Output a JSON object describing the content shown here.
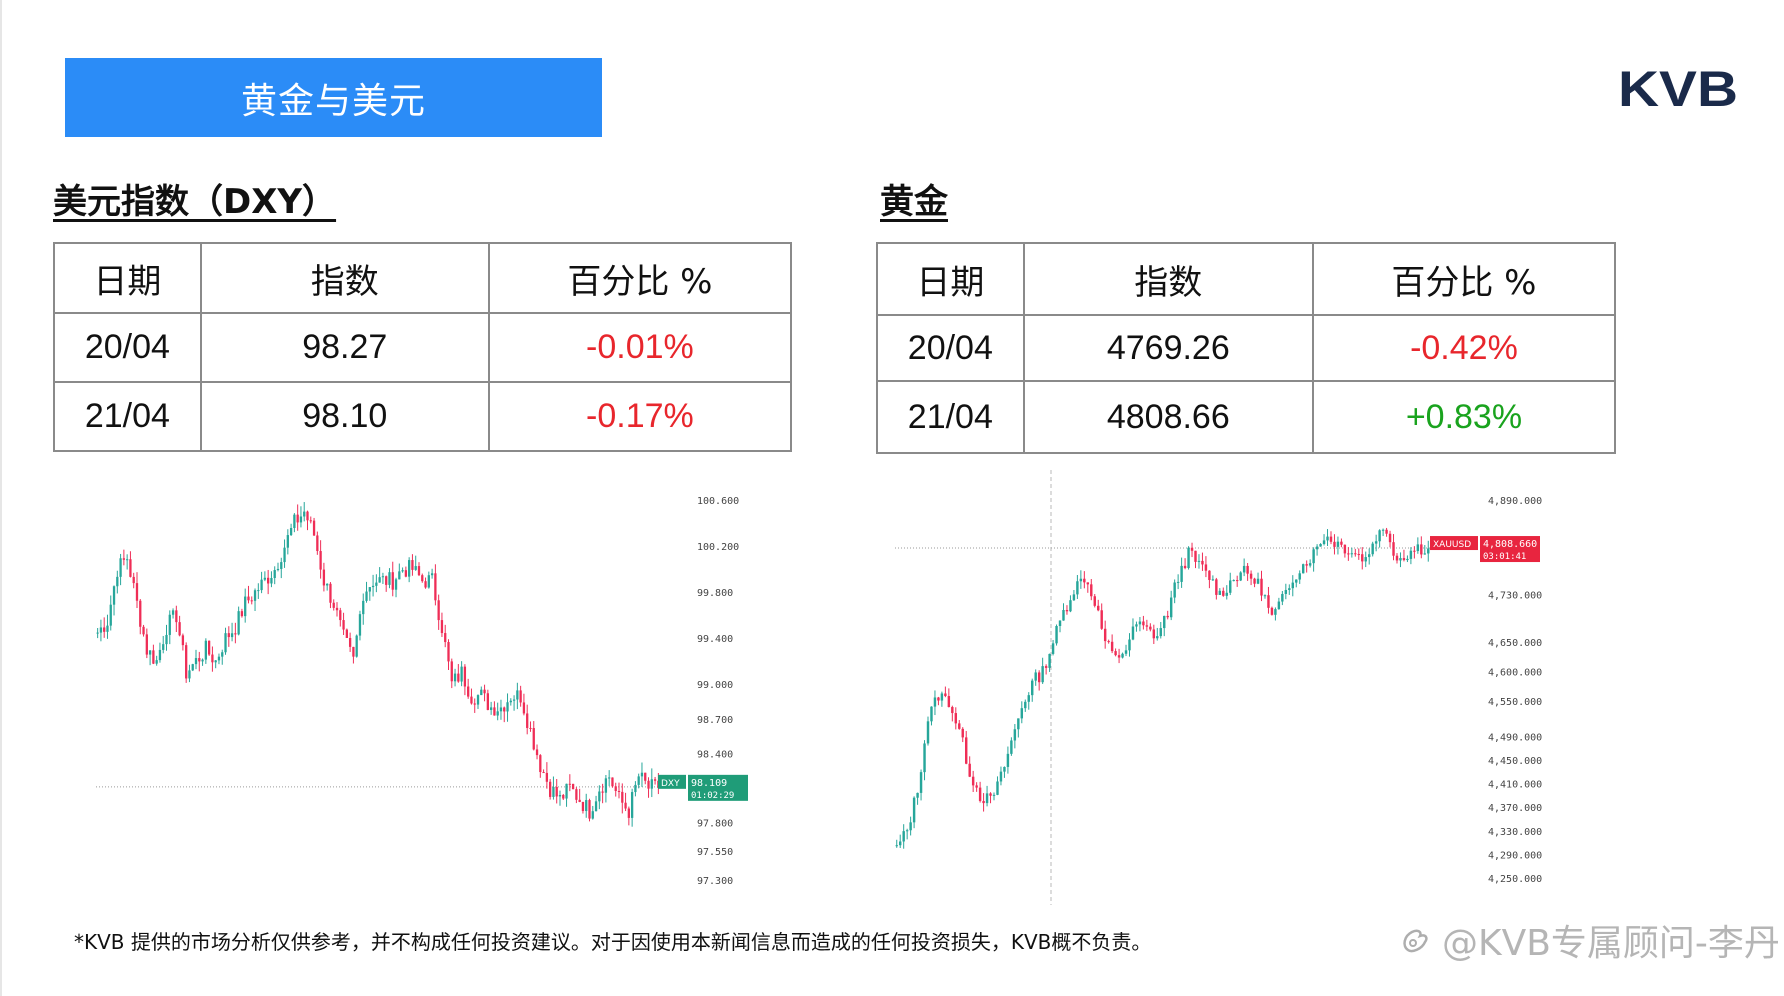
{
  "header": {
    "title": "黄金与美元",
    "logo_text": "KVB"
  },
  "sections": {
    "dxy_title": "美元指数（DXY）",
    "gold_title": "黄金"
  },
  "tables": {
    "dxy": {
      "columns": [
        "日期",
        "指数",
        "百分比 %"
      ],
      "rows": [
        {
          "date": "20/04",
          "value": "98.27",
          "pct": "-0.01%"
        },
        {
          "date": "21/04",
          "value": "98.10",
          "pct": "-0.17%"
        }
      ]
    },
    "gold": {
      "columns": [
        "日期",
        "指数",
        "百分比 %"
      ],
      "rows": [
        {
          "date": "20/04",
          "value": "4769.26",
          "pct": "-0.42%"
        },
        {
          "date": "21/04",
          "value": "4808.66",
          "pct": "+0.83%"
        }
      ]
    }
  },
  "colors": {
    "banner": "#2b8cf7",
    "up": "#26a69a",
    "down": "#ef2d56",
    "negative_text": "#e8262c",
    "positive_text": "#1aa31e"
  },
  "chart_data": [
    {
      "type": "candlestick",
      "ticks": [
        "100.600",
        "100.200",
        "99.800",
        "99.400",
        "99.000",
        "98.700",
        "98.400",
        "97.800",
        "97.550",
        "97.300"
      ],
      "tick_values": [
        100.6,
        100.2,
        99.8,
        99.4,
        99.0,
        98.7,
        98.4,
        97.8,
        97.55,
        97.3
      ],
      "ylim": [
        97.3,
        100.6
      ],
      "price_label": {
        "symbol": "DXY",
        "price": "98.109",
        "countdown": "01:02:29",
        "value": 98.109
      },
      "price_line": 98.109,
      "close_path": [
        99.45,
        99.55,
        100.0,
        100.1,
        99.7,
        99.3,
        99.2,
        99.5,
        99.6,
        99.1,
        99.2,
        99.3,
        99.2,
        99.4,
        99.5,
        99.7,
        99.8,
        99.9,
        100.0,
        100.2,
        100.4,
        100.5,
        100.3,
        99.9,
        99.7,
        99.4,
        99.2,
        99.8,
        99.9,
        99.9,
        99.9,
        100.0,
        100.0,
        99.9,
        99.9,
        99.5,
        99.0,
        99.1,
        98.9,
        98.9,
        98.8,
        98.8,
        98.9,
        98.9,
        98.6,
        98.3,
        98.1,
        98.0,
        98.1,
        98.0,
        97.9,
        98.1,
        98.2,
        98.0,
        97.9,
        98.2,
        98.1,
        98.1
      ]
    },
    {
      "type": "candlestick",
      "ticks": [
        "4,890.000",
        "4,730.000",
        "4,650.000",
        "4,600.000",
        "4,550.000",
        "4,490.000",
        "4,450.000",
        "4,410.000",
        "4,370.000",
        "4,330.000",
        "4,290.000",
        "4,250.000"
      ],
      "tick_values": [
        4890,
        4730,
        4650,
        4600,
        4550,
        4490,
        4450,
        4410,
        4370,
        4330,
        4290,
        4250
      ],
      "ylim": [
        4250,
        4890
      ],
      "price_label": {
        "symbol": "XAUUSD",
        "price": "4,808.660",
        "countdown": "03:01:41",
        "value": 4808.66
      },
      "price_line": 4808.66,
      "close_path": [
        4300,
        4330,
        4400,
        4520,
        4560,
        4550,
        4500,
        4430,
        4390,
        4380,
        4420,
        4480,
        4540,
        4580,
        4600,
        4650,
        4700,
        4740,
        4760,
        4720,
        4650,
        4620,
        4640,
        4680,
        4670,
        4660,
        4700,
        4760,
        4800,
        4780,
        4760,
        4730,
        4750,
        4770,
        4760,
        4740,
        4690,
        4720,
        4760,
        4780,
        4800,
        4830,
        4820,
        4810,
        4800,
        4790,
        4830,
        4840,
        4790,
        4800,
        4810,
        4808
      ]
    }
  ],
  "footer": {
    "disclaimer": "*KVB 提供的市场分析仅供参考，并不构成任何投资建议。对于因使用本新闻信息而造成的任何投资损失，KVB概不负责。",
    "watermark": "@KVB专属顾问-李丹"
  }
}
